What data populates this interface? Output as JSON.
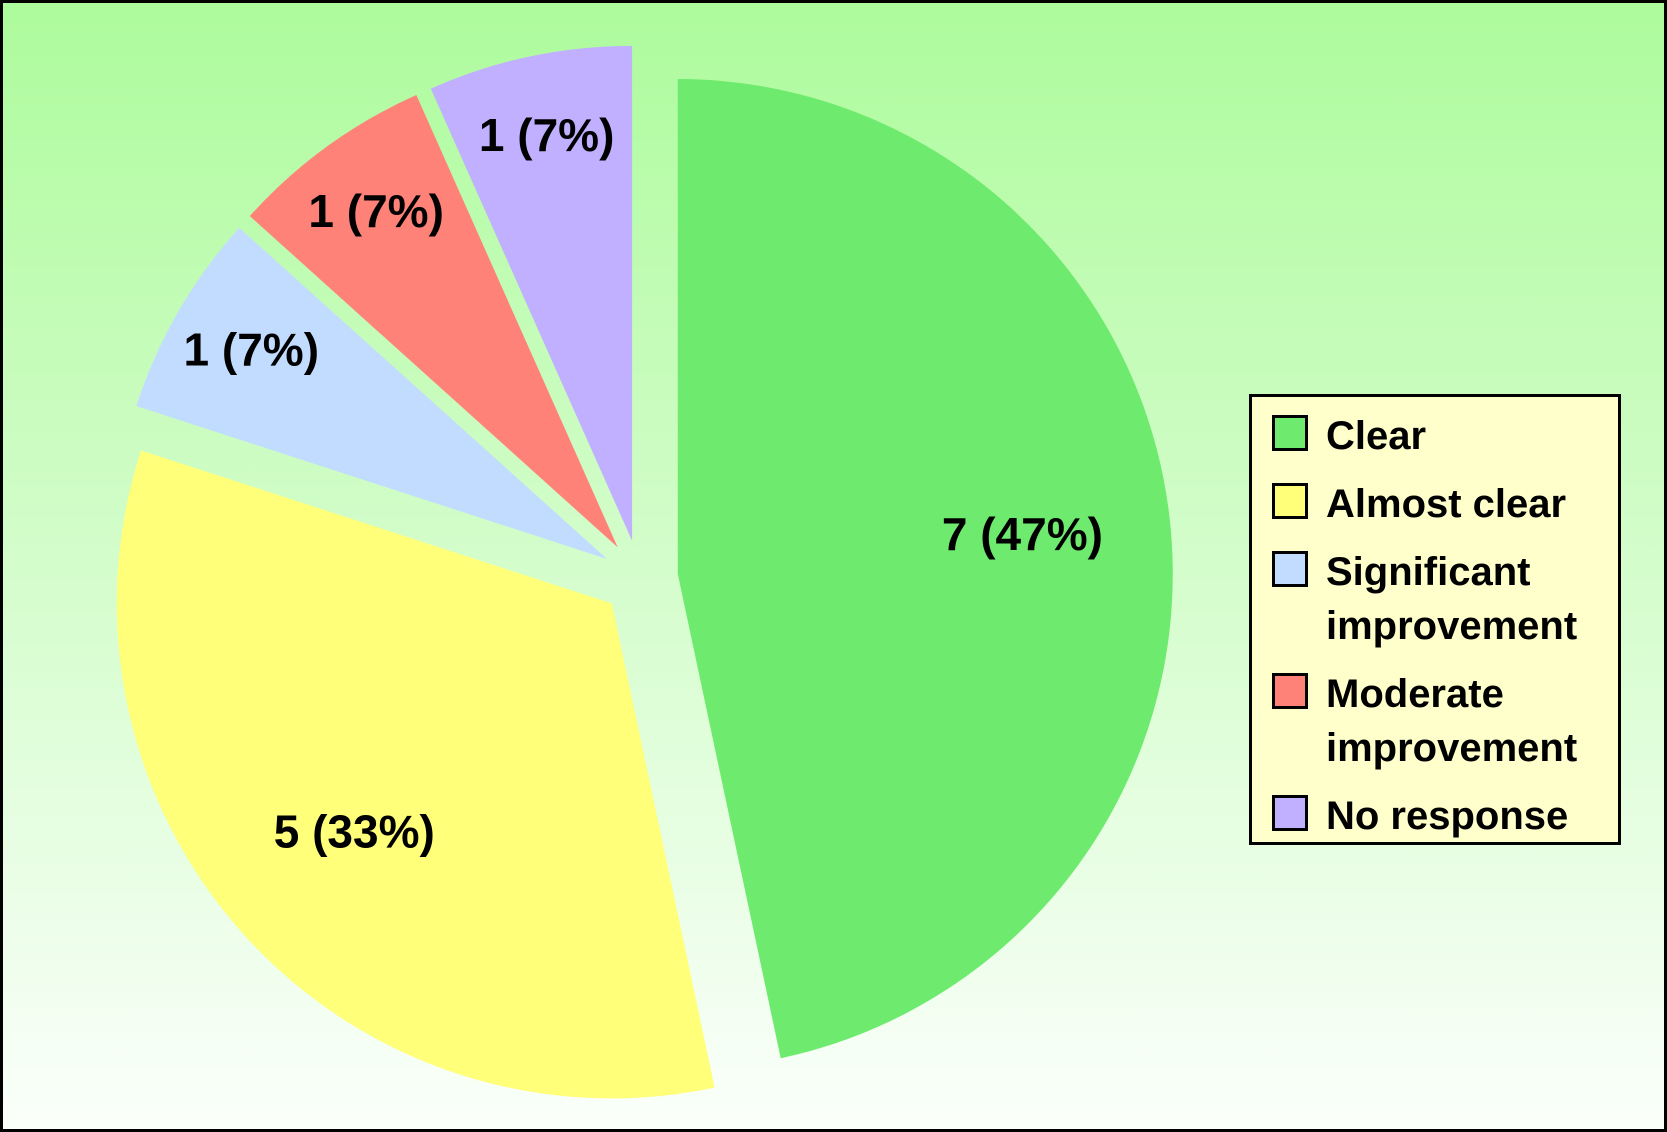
{
  "chart_data": {
    "type": "pie",
    "categories": [
      "Clear",
      "Almost clear",
      "Significant improvement",
      "Moderate improvement",
      "No response"
    ],
    "values": [
      7,
      5,
      1,
      1,
      1
    ],
    "value_labels": [
      "7 (47%)",
      "5 (33%)",
      "1 (7%)",
      "1 (7%)",
      "1 (7%)"
    ],
    "colors": [
      "#6eeb6e",
      "#ffff7a",
      "#c2dcff",
      "#ff8278",
      "#c0b0ff"
    ],
    "exploded": true,
    "legend": "right"
  }
}
